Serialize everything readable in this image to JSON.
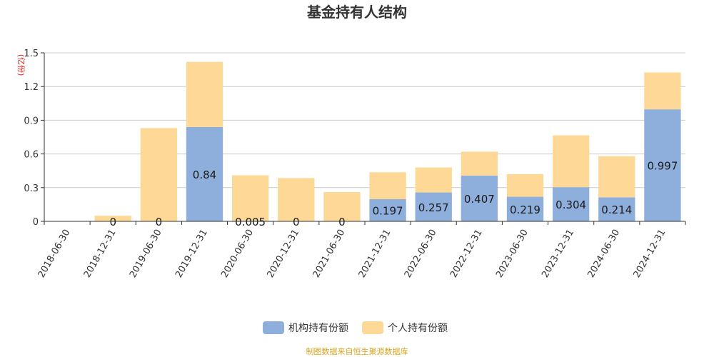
{
  "chart_data": {
    "type": "bar",
    "stacked": true,
    "title": "基金持有人结构",
    "unit_label": "(亿份)",
    "categories": [
      "2018-06-30",
      "2018-12-31",
      "2019-06-30",
      "2019-12-31",
      "2020-06-30",
      "2020-12-31",
      "2021-06-30",
      "2021-12-31",
      "2022-06-30",
      "2022-12-31",
      "2023-06-30",
      "2023-12-31",
      "2024-06-30",
      "2024-12-31"
    ],
    "series": [
      {
        "name": "机构持有份额",
        "color": "#8eaedb",
        "values": [
          0,
          0,
          0,
          0.84,
          0.005,
          0,
          0,
          0.197,
          0.257,
          0.407,
          0.219,
          0.304,
          0.214,
          0.997
        ],
        "labels": [
          "",
          "0",
          "0",
          "0.84",
          "0.005",
          "0",
          "0",
          "0.197",
          "0.257",
          "0.407",
          "0.219",
          "0.304",
          "0.214",
          "0.997"
        ]
      },
      {
        "name": "个人持有份额",
        "color": "#fdd896",
        "values": [
          0,
          0.05,
          0.83,
          0.58,
          0.405,
          0.385,
          0.26,
          0.24,
          0.223,
          0.213,
          0.201,
          0.461,
          0.366,
          0.328
        ]
      }
    ],
    "y_ticks": [
      "0",
      "0.3",
      "0.6",
      "0.9",
      "1.2",
      "1.5"
    ],
    "ylim": [
      0,
      1.5
    ],
    "grid": true,
    "legend_position": "bottom-center"
  },
  "source_text": "制图数据来自恒生聚源数据库"
}
